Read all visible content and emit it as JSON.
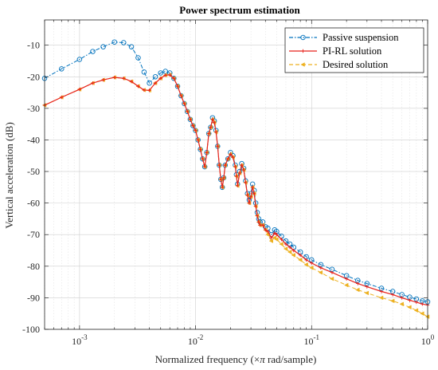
{
  "chart_data": {
    "type": "line",
    "title": "Power spectrum estimation",
    "xlabel_parts": [
      "Normalized frequency  (",
      "×",
      "π",
      " rad/sample)"
    ],
    "ylabel": "Vertical acceleration (dB)",
    "xscale": "log",
    "xlim": [
      0.0005,
      1
    ],
    "ylim": [
      -100,
      -2
    ],
    "grid": true,
    "legend_position": "top-right",
    "x_tick_labels": [
      {
        "x": 0.001,
        "base": "10",
        "exp": "-3"
      },
      {
        "x": 0.01,
        "base": "10",
        "exp": "-2"
      },
      {
        "x": 0.1,
        "base": "10",
        "exp": "-1"
      },
      {
        "x": 1,
        "base": "10",
        "exp": "0"
      }
    ],
    "y_ticks": [
      -100,
      -90,
      -80,
      -70,
      -60,
      -50,
      -40,
      -30,
      -20,
      -10
    ],
    "y_tick_labels": [
      "-100",
      "-90",
      "-80",
      "-70",
      "-60",
      "-50",
      "-40",
      "-30",
      "-20",
      "-10"
    ],
    "series": [
      {
        "name": "Passive suspension",
        "color": "#0072BD",
        "line_style": "dash-dot",
        "marker": "circle",
        "x": [
          0.0005,
          0.0007,
          0.001,
          0.0013,
          0.0016,
          0.002,
          0.0024,
          0.0028,
          0.0032,
          0.0036,
          0.004,
          0.0045,
          0.005,
          0.0055,
          0.006,
          0.0065,
          0.007,
          0.0075,
          0.008,
          0.0085,
          0.009,
          0.0095,
          0.01,
          0.0105,
          0.011,
          0.0115,
          0.012,
          0.0125,
          0.013,
          0.0135,
          0.014,
          0.0145,
          0.015,
          0.0155,
          0.016,
          0.0165,
          0.017,
          0.0175,
          0.018,
          0.019,
          0.02,
          0.021,
          0.022,
          0.0225,
          0.023,
          0.024,
          0.025,
          0.026,
          0.027,
          0.028,
          0.029,
          0.03,
          0.031,
          0.032,
          0.033,
          0.034,
          0.035,
          0.036,
          0.038,
          0.04,
          0.042,
          0.045,
          0.048,
          0.05,
          0.055,
          0.06,
          0.065,
          0.07,
          0.08,
          0.09,
          0.1,
          0.12,
          0.15,
          0.2,
          0.25,
          0.3,
          0.4,
          0.5,
          0.6,
          0.7,
          0.8,
          0.9,
          1.0
        ],
        "y": [
          -20.5,
          -17.5,
          -14.5,
          -12,
          -10.5,
          -9,
          -9.2,
          -10.5,
          -14,
          -18.5,
          -22,
          -20,
          -18.8,
          -18.3,
          -18.8,
          -20.5,
          -23,
          -26,
          -28.5,
          -31,
          -33.5,
          -35.5,
          -37,
          -40,
          -43,
          -46,
          -48.5,
          -44,
          -38,
          -36,
          -33,
          -34,
          -37,
          -42,
          -48,
          -52.5,
          -55,
          -52,
          -48,
          -46,
          -44,
          -45,
          -48,
          -51,
          -54,
          -50,
          -47.5,
          -49,
          -53,
          -57,
          -59,
          -57,
          -54,
          -56,
          -60,
          -63,
          -65,
          -66,
          -66,
          -67.5,
          -68,
          -70,
          -68.5,
          -69,
          -70.5,
          -72,
          -73,
          -74,
          -75.5,
          -77,
          -78,
          -79.5,
          -81,
          -83,
          -84.5,
          -85.5,
          -87,
          -88,
          -89,
          -89.8,
          -90.4,
          -91,
          -91.3
        ]
      },
      {
        "name": "PI-RL solution",
        "color": "#E8221B",
        "line_style": "solid",
        "marker": "plus",
        "x": [
          0.0005,
          0.0007,
          0.001,
          0.0013,
          0.0016,
          0.002,
          0.0024,
          0.0028,
          0.0032,
          0.0036,
          0.004,
          0.0045,
          0.005,
          0.0055,
          0.006,
          0.0065,
          0.007,
          0.0075,
          0.008,
          0.0085,
          0.009,
          0.0095,
          0.01,
          0.0105,
          0.011,
          0.0115,
          0.012,
          0.0125,
          0.013,
          0.0135,
          0.014,
          0.0145,
          0.015,
          0.0155,
          0.016,
          0.0165,
          0.017,
          0.0175,
          0.018,
          0.019,
          0.02,
          0.021,
          0.022,
          0.0225,
          0.023,
          0.024,
          0.025,
          0.026,
          0.027,
          0.028,
          0.029,
          0.03,
          0.031,
          0.032,
          0.033,
          0.034,
          0.035,
          0.036,
          0.038,
          0.04,
          0.042,
          0.045,
          0.048,
          0.05,
          0.055,
          0.06,
          0.065,
          0.07,
          0.08,
          0.09,
          0.1,
          0.12,
          0.15,
          0.2,
          0.25,
          0.3,
          0.4,
          0.5,
          0.6,
          0.7,
          0.8,
          0.9,
          1.0
        ],
        "y": [
          -29,
          -26.5,
          -24,
          -22,
          -21,
          -20.2,
          -20.5,
          -21.5,
          -23,
          -24.2,
          -24.3,
          -22,
          -20.5,
          -19.5,
          -19.4,
          -20.5,
          -23,
          -26,
          -28.5,
          -31,
          -33.5,
          -35.5,
          -37,
          -40,
          -43,
          -46,
          -48.5,
          -44,
          -38,
          -36,
          -33.5,
          -34.5,
          -37.5,
          -42,
          -48,
          -52.5,
          -55,
          -52,
          -48,
          -46,
          -44.5,
          -45.5,
          -48.5,
          -51.5,
          -54.5,
          -50.5,
          -48,
          -49.5,
          -53.5,
          -57.5,
          -60,
          -58,
          -55,
          -57,
          -61,
          -64,
          -66,
          -67,
          -67,
          -68.5,
          -69,
          -71,
          -69.5,
          -70,
          -71.5,
          -73,
          -74,
          -75,
          -76.5,
          -78,
          -79,
          -80.5,
          -82,
          -84,
          -85.5,
          -86.5,
          -88,
          -89,
          -90,
          -90.8,
          -91.4,
          -92,
          -92.3
        ]
      },
      {
        "name": "Desired solution",
        "color": "#EDB120",
        "line_style": "dashed",
        "marker": "triangle-left",
        "x": [
          0.0005,
          0.0007,
          0.001,
          0.0013,
          0.0016,
          0.002,
          0.0024,
          0.0028,
          0.0032,
          0.0036,
          0.004,
          0.0045,
          0.005,
          0.0055,
          0.006,
          0.0065,
          0.007,
          0.0075,
          0.008,
          0.0085,
          0.009,
          0.0095,
          0.01,
          0.0105,
          0.011,
          0.0115,
          0.012,
          0.0125,
          0.013,
          0.0135,
          0.014,
          0.0145,
          0.015,
          0.0155,
          0.016,
          0.0165,
          0.017,
          0.0175,
          0.018,
          0.019,
          0.02,
          0.021,
          0.022,
          0.0225,
          0.023,
          0.024,
          0.025,
          0.026,
          0.027,
          0.028,
          0.029,
          0.03,
          0.031,
          0.032,
          0.033,
          0.034,
          0.035,
          0.036,
          0.038,
          0.04,
          0.042,
          0.045,
          0.048,
          0.05,
          0.055,
          0.06,
          0.065,
          0.07,
          0.08,
          0.09,
          0.1,
          0.12,
          0.15,
          0.2,
          0.25,
          0.3,
          0.4,
          0.5,
          0.6,
          0.7,
          0.8,
          0.9,
          1.0
        ],
        "y": [
          -29,
          -26.5,
          -24,
          -22,
          -21,
          -20.2,
          -20.5,
          -21.5,
          -23,
          -24.2,
          -24.3,
          -22,
          -20.5,
          -19.5,
          -19.4,
          -20.5,
          -23,
          -26,
          -28.5,
          -31,
          -33.5,
          -35.5,
          -37,
          -40,
          -43,
          -46,
          -48.5,
          -44,
          -38,
          -36,
          -33.5,
          -34.5,
          -37.5,
          -42,
          -48,
          -52.5,
          -55,
          -52,
          -48,
          -46,
          -44.5,
          -45.5,
          -48.5,
          -51.5,
          -54.5,
          -50.5,
          -48,
          -49.5,
          -53.5,
          -57.5,
          -60,
          -58,
          -55,
          -57,
          -61,
          -64,
          -66,
          -67,
          -67,
          -68.5,
          -70,
          -72,
          -71,
          -71.5,
          -73,
          -74.5,
          -75.5,
          -76.5,
          -78,
          -79.5,
          -80.5,
          -82,
          -84,
          -86,
          -87.5,
          -88.5,
          -90,
          -91,
          -92,
          -93,
          -94,
          -95,
          -96
        ]
      }
    ]
  }
}
